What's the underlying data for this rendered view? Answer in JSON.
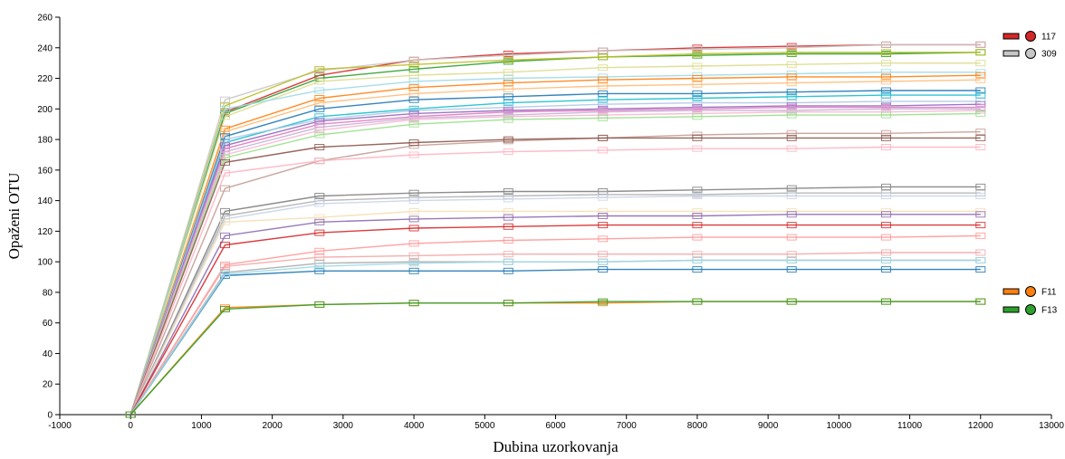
{
  "chart_data": {
    "type": "line",
    "title": "",
    "xlabel": "Dubina uzorkovanja",
    "ylabel": "Opaženi OTU",
    "xlim": [
      -1000,
      13000
    ],
    "ylim": [
      0,
      260
    ],
    "x_ticks": [
      -1000,
      0,
      1000,
      2000,
      3000,
      4000,
      5000,
      6000,
      7000,
      8000,
      9000,
      10000,
      11000,
      12000,
      13000
    ],
    "y_ticks": [
      0,
      20,
      40,
      60,
      80,
      100,
      120,
      140,
      160,
      180,
      200,
      220,
      240,
      260
    ],
    "grid": false,
    "legend_position": "right",
    "x": [
      0,
      1333,
      2667,
      4000,
      5333,
      6667,
      8000,
      9333,
      10667,
      12000
    ],
    "series": [
      {
        "name": "117",
        "color": "#d62728",
        "values": [
          0,
          198,
          222,
          232,
          236,
          238,
          240,
          241,
          242,
          242
        ]
      },
      {
        "name": "309",
        "color": "#c7c7c7",
        "values": [
          0,
          206,
          225,
          232,
          235,
          238,
          239,
          240,
          242,
          242
        ]
      },
      {
        "color": "#2ca02c",
        "values": [
          0,
          197,
          220,
          226,
          231,
          234,
          235,
          236,
          236,
          237
        ]
      },
      {
        "color": "#bcbd22",
        "values": [
          0,
          202,
          226,
          229,
          232,
          234,
          236,
          237,
          237,
          237
        ]
      },
      {
        "color": "#dbdb8d",
        "values": [
          0,
          195,
          218,
          222,
          224,
          227,
          228,
          229,
          230,
          230
        ]
      },
      {
        "color": "#9edae5",
        "values": [
          0,
          200,
          212,
          218,
          220,
          221,
          222,
          223,
          224,
          224
        ]
      },
      {
        "color": "#ff7f0e",
        "values": [
          0,
          187,
          207,
          214,
          217,
          219,
          220,
          221,
          221,
          222
        ]
      },
      {
        "color": "#ffbb78",
        "values": [
          0,
          185,
          204,
          210,
          213,
          215,
          216,
          217,
          218,
          219
        ]
      },
      {
        "color": "#1f77b4",
        "values": [
          0,
          182,
          200,
          206,
          208,
          210,
          210,
          211,
          212,
          212
        ]
      },
      {
        "color": "#17becf",
        "values": [
          0,
          178,
          195,
          200,
          204,
          206,
          207,
          208,
          209,
          209
        ]
      },
      {
        "color": "#aec7e8",
        "values": [
          0,
          180,
          193,
          199,
          201,
          203,
          204,
          204,
          205,
          205
        ]
      },
      {
        "color": "#9467bd",
        "values": [
          0,
          176,
          192,
          197,
          199,
          200,
          201,
          202,
          202,
          203
        ]
      },
      {
        "color": "#e377c2",
        "values": [
          0,
          174,
          190,
          195,
          198,
          199,
          200,
          201,
          201,
          201
        ]
      },
      {
        "color": "#c5b0d5",
        "values": [
          0,
          172,
          188,
          194,
          196,
          198,
          199,
          199,
          200,
          200
        ]
      },
      {
        "color": "#f7b6d2",
        "values": [
          0,
          170,
          186,
          193,
          195,
          196,
          197,
          198,
          198,
          199
        ]
      },
      {
        "color": "#98df8a",
        "values": [
          0,
          168,
          183,
          190,
          193,
          194,
          195,
          196,
          196,
          197
        ]
      },
      {
        "color": "#c49c94",
        "values": [
          0,
          148,
          166,
          176,
          179,
          181,
          183,
          184,
          184,
          185
        ]
      },
      {
        "color": "#8c564b",
        "values": [
          0,
          165,
          175,
          178,
          180,
          181,
          181,
          181,
          181,
          181
        ]
      },
      {
        "color": "#ffb3c1",
        "values": [
          0,
          158,
          166,
          170,
          172,
          173,
          174,
          174,
          175,
          175
        ]
      },
      {
        "color": "#7f7f7f",
        "values": [
          0,
          133,
          143,
          145,
          146,
          146,
          147,
          148,
          149,
          149
        ]
      },
      {
        "color": "#b0b0b0",
        "values": [
          0,
          130,
          140,
          142,
          143,
          144,
          144,
          145,
          145,
          145
        ]
      },
      {
        "color": "#c9d4e8",
        "values": [
          0,
          128,
          138,
          140,
          141,
          142,
          143,
          143,
          143,
          143
        ]
      },
      {
        "color": "#f5deb3",
        "values": [
          0,
          126,
          129,
          133,
          133,
          133,
          133,
          133,
          133,
          133
        ]
      },
      {
        "color": "#8c6bb1",
        "values": [
          0,
          117,
          126,
          128,
          129,
          130,
          130,
          131,
          131,
          131
        ]
      },
      {
        "color": "#d62728",
        "values": [
          0,
          111,
          119,
          122,
          123,
          124,
          124,
          124,
          124,
          124
        ]
      },
      {
        "color": "#ff9896",
        "values": [
          0,
          98,
          107,
          112,
          114,
          115,
          116,
          116,
          116,
          117
        ]
      },
      {
        "color": "#f4a6a6",
        "values": [
          0,
          97,
          103,
          104,
          105,
          105,
          105,
          105,
          106,
          106
        ]
      },
      {
        "color": "#aaaaaa",
        "values": [
          0,
          93,
          99,
          100,
          100,
          100,
          101,
          101,
          101,
          101
        ]
      },
      {
        "color": "#1f77b4",
        "values": [
          0,
          91,
          94,
          94,
          94,
          95,
          95,
          95,
          95,
          95
        ]
      },
      {
        "color": "#9edae5",
        "values": [
          0,
          92,
          97,
          99,
          100,
          100,
          101,
          101,
          101,
          101
        ]
      },
      {
        "name": "F11",
        "color": "#ff7f0e",
        "values": [
          0,
          70,
          72,
          73,
          73,
          73,
          74,
          74,
          74,
          74
        ]
      },
      {
        "name": "F13",
        "color": "#2ca02c",
        "values": [
          0,
          69,
          72,
          73,
          73,
          74,
          74,
          74,
          74,
          74
        ]
      }
    ]
  }
}
